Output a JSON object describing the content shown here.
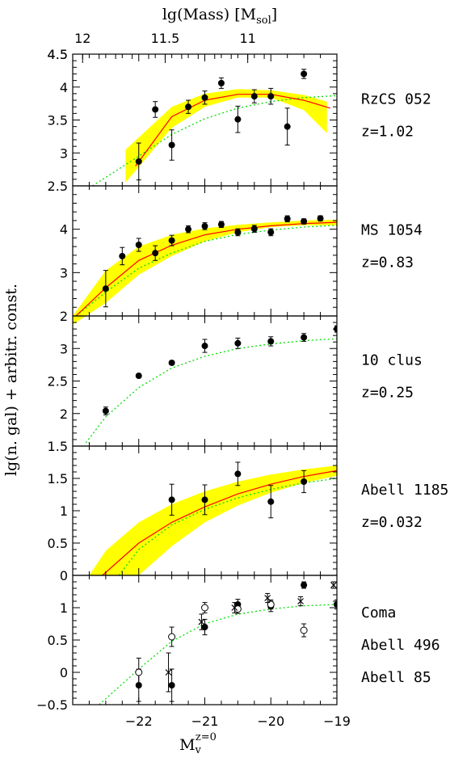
{
  "chart_data": {
    "type": "scatter",
    "x_axis": {
      "label": "M",
      "label_sub": "v",
      "label_sup": "z=0",
      "range": [
        -23,
        -19
      ],
      "ticks": [
        "-22",
        "-21",
        "-20",
        "-19"
      ],
      "tick_values": [
        -22,
        -21,
        -20,
        -19
      ]
    },
    "top_axis": {
      "label": "lg(Mass) [M",
      "label_sub": "sol",
      "label_end": "]",
      "ticks": [
        "12",
        "11.5",
        "11"
      ],
      "tick_positions_mag": [
        -22.85,
        -21.6,
        -20.35
      ]
    },
    "y_axis_label": "lg(n. gal) + arbitr. const.",
    "panels": [
      {
        "name": "RzCS 052",
        "redshift": "z=1.02",
        "ylim": [
          2.5,
          4.5
        ],
        "yticks": [
          "2.5",
          "3",
          "3.5",
          "4",
          "4.5"
        ],
        "ytick_values": [
          2.5,
          3,
          3.5,
          4,
          4.5
        ],
        "band": {
          "x": [
            -22.2,
            -21.5,
            -21,
            -20.5,
            -20,
            -19.5,
            -19.15
          ],
          "lower": [
            2.55,
            3.38,
            3.7,
            3.84,
            3.84,
            3.65,
            3.3
          ],
          "upper": [
            3.05,
            3.7,
            3.9,
            3.97,
            3.95,
            3.88,
            3.78
          ]
        },
        "fit": {
          "x": [
            -22.05,
            -21.5,
            -21,
            -20.5,
            -20,
            -19.5,
            -19.1
          ],
          "y": [
            2.8,
            3.55,
            3.8,
            3.89,
            3.89,
            3.8,
            3.68
          ]
        },
        "ref_curve": {
          "x": [
            -22.7,
            -22,
            -21.5,
            -21,
            -20.5,
            -20,
            -19.5,
            -19
          ],
          "y": [
            2.5,
            2.95,
            3.28,
            3.52,
            3.68,
            3.78,
            3.84,
            3.87
          ]
        },
        "points": [
          {
            "x": -22.0,
            "y": 2.87,
            "err": 0.28,
            "marker": "filled"
          },
          {
            "x": -21.75,
            "y": 3.66,
            "err": 0.12,
            "marker": "filled"
          },
          {
            "x": -21.5,
            "y": 3.12,
            "err": 0.23,
            "marker": "filled"
          },
          {
            "x": -21.25,
            "y": 3.7,
            "err": 0.1,
            "marker": "filled"
          },
          {
            "x": -21.0,
            "y": 3.84,
            "err": 0.1,
            "marker": "filled"
          },
          {
            "x": -20.75,
            "y": 4.06,
            "err": 0.08,
            "marker": "filled"
          },
          {
            "x": -20.5,
            "y": 3.51,
            "err": 0.2,
            "marker": "filled"
          },
          {
            "x": -20.25,
            "y": 3.86,
            "err": 0.1,
            "marker": "filled"
          },
          {
            "x": -20.0,
            "y": 3.86,
            "err": 0.12,
            "marker": "filled"
          },
          {
            "x": -19.75,
            "y": 3.4,
            "err": 0.28,
            "marker": "filled"
          },
          {
            "x": -19.5,
            "y": 4.2,
            "err": 0.07,
            "marker": "filled"
          }
        ]
      },
      {
        "name": "MS 1054",
        "redshift": "z=0.83",
        "ylim": [
          2,
          5
        ],
        "yticks": [
          "2",
          "3",
          "4"
        ],
        "ytick_values": [
          2,
          3,
          4
        ],
        "band": {
          "x": [
            -23,
            -22.5,
            -22,
            -21.5,
            -21,
            -20.5,
            -20,
            -19.5,
            -19
          ],
          "lower": [
            1.8,
            2.3,
            2.95,
            3.38,
            3.72,
            3.93,
            4.05,
            4.09,
            4.09
          ],
          "upper": [
            2.0,
            3.05,
            3.6,
            3.87,
            4.02,
            4.1,
            4.16,
            4.2,
            4.22
          ]
        },
        "fit": {
          "x": [
            -22.95,
            -22.5,
            -22,
            -21.5,
            -21,
            -20.5,
            -20,
            -19.5,
            -19
          ],
          "y": [
            2.0,
            2.65,
            3.28,
            3.63,
            3.87,
            4.0,
            4.08,
            4.13,
            4.16
          ]
        },
        "ref_curve": {
          "x": [
            -22.95,
            -22.5,
            -22,
            -21.5,
            -21,
            -20.5,
            -20,
            -19.5,
            -19
          ],
          "y": [
            2.0,
            2.55,
            3.1,
            3.45,
            3.72,
            3.88,
            3.98,
            4.05,
            4.09
          ]
        },
        "points": [
          {
            "x": -22.5,
            "y": 2.63,
            "err": 0.42,
            "marker": "filled"
          },
          {
            "x": -22.25,
            "y": 3.38,
            "err": 0.2,
            "marker": "filled"
          },
          {
            "x": -22.0,
            "y": 3.64,
            "err": 0.15,
            "marker": "filled"
          },
          {
            "x": -21.75,
            "y": 3.45,
            "err": 0.17,
            "marker": "filled"
          },
          {
            "x": -21.5,
            "y": 3.74,
            "err": 0.12,
            "marker": "filled"
          },
          {
            "x": -21.25,
            "y": 4.0,
            "err": 0.08,
            "marker": "filled"
          },
          {
            "x": -21.0,
            "y": 4.07,
            "err": 0.08,
            "marker": "filled"
          },
          {
            "x": -20.75,
            "y": 4.11,
            "err": 0.07,
            "marker": "filled"
          },
          {
            "x": -20.5,
            "y": 3.93,
            "err": 0.08,
            "marker": "filled"
          },
          {
            "x": -20.25,
            "y": 4.01,
            "err": 0.08,
            "marker": "filled"
          },
          {
            "x": -20.0,
            "y": 3.93,
            "err": 0.08,
            "marker": "filled"
          },
          {
            "x": -19.75,
            "y": 4.24,
            "err": 0.07,
            "marker": "filled"
          },
          {
            "x": -19.5,
            "y": 4.18,
            "err": 0.06,
            "marker": "filled"
          },
          {
            "x": -19.25,
            "y": 4.25,
            "err": 0.06,
            "marker": "filled"
          }
        ]
      },
      {
        "name": "10 clus",
        "redshift": "z=0.25",
        "ylim": [
          1.5,
          3.5
        ],
        "yticks": [
          "1.5",
          "2",
          "2.5",
          "3"
        ],
        "ytick_values": [
          1.5,
          2,
          2.5,
          3
        ],
        "ref_curve": {
          "x": [
            -22.8,
            -22.5,
            -22,
            -21.5,
            -21,
            -20.5,
            -20,
            -19.5,
            -19
          ],
          "y": [
            1.55,
            1.95,
            2.4,
            2.7,
            2.88,
            3.0,
            3.07,
            3.12,
            3.15
          ]
        },
        "points": [
          {
            "x": -22.5,
            "y": 2.04,
            "err": 0.06,
            "marker": "filled"
          },
          {
            "x": -22.0,
            "y": 2.58,
            "err": 0.03,
            "marker": "filled"
          },
          {
            "x": -21.5,
            "y": 2.78,
            "err": 0.03,
            "marker": "filled"
          },
          {
            "x": -21.0,
            "y": 3.04,
            "err": 0.1,
            "marker": "filled"
          },
          {
            "x": -20.5,
            "y": 3.08,
            "err": 0.08,
            "marker": "filled"
          },
          {
            "x": -20.0,
            "y": 3.11,
            "err": 0.07,
            "marker": "filled"
          },
          {
            "x": -19.5,
            "y": 3.17,
            "err": 0.06,
            "marker": "filled"
          },
          {
            "x": -19.0,
            "y": 3.3,
            "err": 0.05,
            "marker": "filled"
          }
        ]
      },
      {
        "name": "Abell 1185",
        "redshift": "z=0.032",
        "ylim": [
          0,
          2
        ],
        "yticks": [
          "0",
          "0.5",
          "1",
          "1.5"
        ],
        "ytick_values": [
          0,
          0.5,
          1,
          1.5
        ],
        "band": {
          "x": [
            -22.75,
            -22.5,
            -22,
            -21.5,
            -21,
            -20.5,
            -20,
            -19.5,
            -19
          ],
          "lower": [
            0.0,
            0.0,
            0.0,
            0.45,
            0.82,
            1.08,
            1.28,
            1.43,
            1.54
          ],
          "upper": [
            0.0,
            0.38,
            0.82,
            1.1,
            1.3,
            1.45,
            1.56,
            1.64,
            1.7
          ]
        },
        "fit": {
          "x": [
            -22.55,
            -22,
            -21.5,
            -21,
            -20.5,
            -20,
            -19.5,
            -19
          ],
          "y": [
            0.0,
            0.5,
            0.82,
            1.06,
            1.26,
            1.41,
            1.53,
            1.62
          ]
        },
        "ref_curve": {
          "x": [
            -22.3,
            -22,
            -21.5,
            -21,
            -20.5,
            -20,
            -19.5,
            -19
          ],
          "y": [
            0.0,
            0.4,
            0.78,
            1.02,
            1.2,
            1.33,
            1.43,
            1.5
          ]
        },
        "points": [
          {
            "x": -21.5,
            "y": 1.17,
            "err": 0.24,
            "marker": "filled"
          },
          {
            "x": -21.0,
            "y": 1.17,
            "err": 0.23,
            "marker": "filled"
          },
          {
            "x": -20.5,
            "y": 1.57,
            "err": 0.18,
            "marker": "filled"
          },
          {
            "x": -20.0,
            "y": 1.14,
            "err": 0.25,
            "marker": "filled"
          },
          {
            "x": -19.5,
            "y": 1.45,
            "err": 0.17,
            "marker": "filled"
          }
        ]
      },
      {
        "name": "Coma",
        "names_extra": [
          "Abell 496",
          "Abell 85"
        ],
        "ylim": [
          -0.5,
          1.5
        ],
        "yticks": [
          "−0.5",
          "0",
          "0.5",
          "1"
        ],
        "ytick_values": [
          -0.5,
          0,
          0.5,
          1
        ],
        "ref_curve": {
          "x": [
            -22.6,
            -22,
            -21.5,
            -21,
            -20.5,
            -20,
            -19.5,
            -19
          ],
          "y": [
            -0.5,
            0.05,
            0.48,
            0.75,
            0.9,
            0.98,
            1.03,
            1.05
          ]
        },
        "points": [
          {
            "x": -22.0,
            "y": -0.2,
            "err": 0.25,
            "marker": "filled"
          },
          {
            "x": -21.5,
            "y": -0.2,
            "err": 0.25,
            "marker": "filled"
          },
          {
            "x": -21.0,
            "y": 0.7,
            "err": 0.12,
            "marker": "filled"
          },
          {
            "x": -20.5,
            "y": 1.05,
            "err": 0.08,
            "marker": "filled"
          },
          {
            "x": -20.0,
            "y": 1.02,
            "err": 0.08,
            "marker": "filled"
          },
          {
            "x": -19.5,
            "y": 1.35,
            "err": 0.05,
            "marker": "filled"
          },
          {
            "x": -19.0,
            "y": 1.05,
            "err": 0.07,
            "marker": "filled"
          },
          {
            "x": -22.0,
            "y": 0.0,
            "err": 0.22,
            "marker": "open"
          },
          {
            "x": -21.5,
            "y": 0.55,
            "err": 0.15,
            "marker": "open"
          },
          {
            "x": -21.0,
            "y": 1.0,
            "err": 0.08,
            "marker": "open"
          },
          {
            "x": -20.5,
            "y": 0.98,
            "err": 0.07,
            "marker": "open"
          },
          {
            "x": -20.0,
            "y": 1.05,
            "err": 0.07,
            "marker": "open"
          },
          {
            "x": -19.5,
            "y": 0.65,
            "err": 0.1,
            "marker": "open"
          },
          {
            "x": -21.55,
            "y": 0.0,
            "err": 0.3,
            "marker": "cross"
          },
          {
            "x": -21.05,
            "y": 0.78,
            "err": 0.12,
            "marker": "cross"
          },
          {
            "x": -20.55,
            "y": 1.0,
            "err": 0.08,
            "marker": "cross"
          },
          {
            "x": -20.05,
            "y": 1.15,
            "err": 0.07,
            "marker": "cross"
          },
          {
            "x": -19.55,
            "y": 1.1,
            "err": 0.07,
            "marker": "cross"
          },
          {
            "x": -19.05,
            "y": 1.35,
            "err": 0.05,
            "marker": "cross"
          }
        ]
      }
    ],
    "colors": {
      "band": "#ffff00",
      "fit": "#ff0000",
      "ref_curve": "#00dd00",
      "points": "#000000"
    }
  }
}
